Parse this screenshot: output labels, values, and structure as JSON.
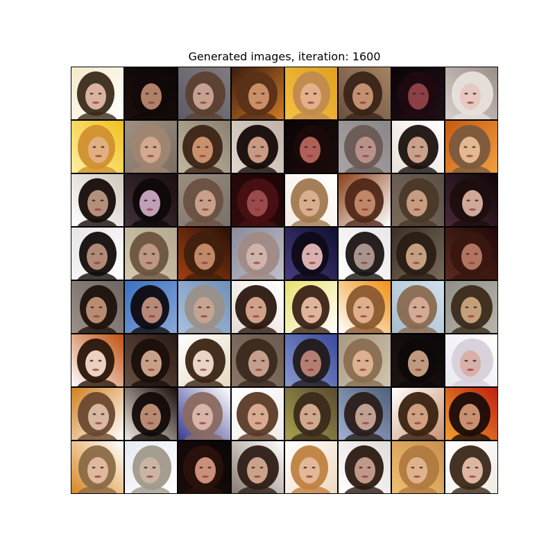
{
  "title": "Generated images, iteration: 1600",
  "grid": {
    "rows": 8,
    "cols": 8,
    "tiles": [
      {
        "bg": "#f4e9c9",
        "bg2": "#ffffff",
        "hair": "#3b2a1c",
        "skin": "#d9b3a0"
      },
      {
        "bg": "#0b0605",
        "bg2": "#1a0f0a",
        "hair": "#120a08",
        "skin": "#b08068"
      },
      {
        "bg": "#7f7b80",
        "bg2": "#5d5b66",
        "hair": "#5c4030",
        "skin": "#c5a090"
      },
      {
        "bg": "#3a1c10",
        "bg2": "#d07a25",
        "hair": "#5a3018",
        "skin": "#c99068"
      },
      {
        "bg": "#e0a020",
        "bg2": "#f5c040",
        "hair": "#c08a50",
        "skin": "#e4b08c"
      },
      {
        "bg": "#a38360",
        "bg2": "#6a5040",
        "hair": "#3a2418",
        "skin": "#c29070"
      },
      {
        "bg": "#0a0408",
        "bg2": "#201018",
        "hair": "#200a10",
        "skin": "#8a4045"
      },
      {
        "bg": "#9a8e88",
        "bg2": "#d8d0cc",
        "hair": "#e8e0dc",
        "skin": "#e6c9c0"
      },
      {
        "bg": "#f0c020",
        "bg2": "#fff0a0",
        "hair": "#d09030",
        "skin": "#e2b080"
      },
      {
        "bg": "#a09080",
        "bg2": "#7a6e66",
        "hair": "#a08670",
        "skin": "#d2a88e"
      },
      {
        "bg": "#8a8070",
        "bg2": "#c0b8a0",
        "hair": "#3c2416",
        "skin": "#c8906c"
      },
      {
        "bg": "#c0b2a8",
        "bg2": "#e0d8d0",
        "hair": "#150a08",
        "skin": "#c89a84"
      },
      {
        "bg": "#0a0406",
        "bg2": "#1a0c0c",
        "hair": "#1a0a0a",
        "skin": "#b06058"
      },
      {
        "bg": "#8a8688",
        "bg2": "#a9a4a6",
        "hair": "#6a5a54",
        "skin": "#b8928a"
      },
      {
        "bg": "#ffffff",
        "bg2": "#e8e0d8",
        "hair": "#1a120e",
        "skin": "#caa08a"
      },
      {
        "bg": "#c85a10",
        "bg2": "#f0a040",
        "hair": "#7a5a40",
        "skin": "#e4b890"
      },
      {
        "bg": "#d0c8c0",
        "bg2": "#ffffff",
        "hair": "#150c08",
        "skin": "#b4907a"
      },
      {
        "bg": "#1a0e10",
        "bg2": "#40303a",
        "hair": "#0e0808",
        "skin": "#c0a0b8"
      },
      {
        "bg": "#9a8e80",
        "bg2": "#7a7068",
        "hair": "#6a5040",
        "skin": "#c8a08a"
      },
      {
        "bg": "#1a0506",
        "bg2": "#300a0c",
        "hair": "#4a1014",
        "skin": "#9a4a4a"
      },
      {
        "bg": "#ffffff",
        "bg2": "#f4ece4",
        "hair": "#a0784e",
        "skin": "#d8ae8c"
      },
      {
        "bg": "#8a4018",
        "bg2": "#ffffff",
        "hair": "#502818",
        "skin": "#c08668"
      },
      {
        "bg": "#5a5048",
        "bg2": "#7a6a5a",
        "hair": "#4a3828",
        "skin": "#c89c80"
      },
      {
        "bg": "#0e0608",
        "bg2": "#4a2838",
        "hair": "#1c0e0e",
        "skin": "#d0a89a"
      },
      {
        "bg": "#e8e4e8",
        "bg2": "#ffffff",
        "hair": "#120c0a",
        "skin": "#b08a76"
      },
      {
        "bg": "#b4a890",
        "bg2": "#d4c8b0",
        "hair": "#6a5440",
        "skin": "#bc9880"
      },
      {
        "bg": "#2a1008",
        "bg2": "#a04010",
        "hair": "#40200e",
        "skin": "#c08868"
      },
      {
        "bg": "#8a8a9a",
        "bg2": "#c0c0cc",
        "hair": "#a08a84",
        "skin": "#d0b4ac"
      },
      {
        "bg": "#101030",
        "bg2": "#4a3a80",
        "hair": "#0e0a16",
        "skin": "#d8b0b0"
      },
      {
        "bg": "#e8e6e6",
        "bg2": "#ffffff",
        "hair": "#1a1414",
        "skin": "#a8948c"
      },
      {
        "bg": "#3a3028",
        "bg2": "#7a6a58",
        "hair": "#2a1e14",
        "skin": "#c4a080"
      },
      {
        "bg": "#200808",
        "bg2": "#5a2a20",
        "hair": "#3a1610",
        "skin": "#b07460"
      },
      {
        "bg": "#6e6660",
        "bg2": "#9a9088",
        "hair": "#1e120c",
        "skin": "#b88c72"
      },
      {
        "bg": "#3a70c0",
        "bg2": "#8aa8d8",
        "hair": "#0e0a10",
        "skin": "#b88878"
      },
      {
        "bg": "#7090b8",
        "bg2": "#a8c0dc",
        "hair": "#9a9088",
        "skin": "#c4a490"
      },
      {
        "bg": "#ffffff",
        "bg2": "#e6dcd4",
        "hair": "#2a1810",
        "skin": "#d0a088"
      },
      {
        "bg": "#e8e070",
        "bg2": "#ffffff",
        "hair": "#3a2216",
        "skin": "#e0b49a"
      },
      {
        "bg": "#f09010",
        "bg2": "#ffffff",
        "hair": "#8a5a30",
        "skin": "#e0ae8c"
      },
      {
        "bg": "#d0e0ec",
        "bg2": "#a8bccc",
        "hair": "#8a6a50",
        "skin": "#d4aa94"
      },
      {
        "bg": "#909088",
        "bg2": "#b8b4ac",
        "hair": "#3a2a1a",
        "skin": "#c4a07a"
      },
      {
        "bg": "#c05010",
        "bg2": "#ffffff",
        "hair": "#2a160c",
        "skin": "#ecd0c0"
      },
      {
        "bg": "#2a1a14",
        "bg2": "#6a5040",
        "hair": "#1a100a",
        "skin": "#c8a088"
      },
      {
        "bg": "#ffffff",
        "bg2": "#e8d8c0",
        "hair": "#3a2414",
        "skin": "#ead4c6"
      },
      {
        "bg": "#6a5a50",
        "bg2": "#8a7666",
        "hair": "#3a2a1e",
        "skin": "#c4a08c"
      },
      {
        "bg": "#3a4a9a",
        "bg2": "#8a98d0",
        "hair": "#201a1a",
        "skin": "#b47e74"
      },
      {
        "bg": "#a89880",
        "bg2": "#d0c4b0",
        "hair": "#8a6e50",
        "skin": "#dcb090"
      },
      {
        "bg": "#0a0608",
        "bg2": "#1e1412",
        "hair": "#0e0908",
        "skin": "#c09a80"
      },
      {
        "bg": "#ffffff",
        "bg2": "#e8e8f0",
        "hair": "#d8d0d8",
        "skin": "#d8b0a8"
      },
      {
        "bg": "#d08020",
        "bg2": "#ffffff",
        "hair": "#6a4830",
        "skin": "#d8b8a0"
      },
      {
        "bg": "#1a0e0a",
        "bg2": "#f0e8e0",
        "hair": "#120a08",
        "skin": "#b88a72"
      },
      {
        "bg": "#ffffff",
        "bg2": "#3a3a90",
        "hair": "#8a6a60",
        "skin": "#d8b4a8"
      },
      {
        "bg": "#ffffff",
        "bg2": "#f0ece8",
        "hair": "#5a3a26",
        "skin": "#d8aa90"
      },
      {
        "bg": "#5a4a30",
        "bg2": "#a8a050",
        "hair": "#3a2a1a",
        "skin": "#d0a88c"
      },
      {
        "bg": "#50607a",
        "bg2": "#a0b0d0",
        "hair": "#2a1e1a",
        "skin": "#c0a090"
      },
      {
        "bg": "#ffffff",
        "bg2": "#c89070",
        "hair": "#3a2210",
        "skin": "#d0a080"
      },
      {
        "bg": "#c02010",
        "bg2": "#f0a030",
        "hair": "#1a0c08",
        "skin": "#c89070"
      },
      {
        "bg": "#ffffff",
        "bg2": "#d88820",
        "hair": "#8a6a48",
        "skin": "#e0b89c"
      },
      {
        "bg": "#e6eaf0",
        "bg2": "#ffffff",
        "hair": "#a0988a",
        "skin": "#ccb4a4"
      },
      {
        "bg": "#0a0606",
        "bg2": "#1a0c0a",
        "hair": "#2a120c",
        "skin": "#c89078"
      },
      {
        "bg": "#ffffff",
        "bg2": "#8a7a70",
        "hair": "#2e1e16",
        "skin": "#caa28a"
      },
      {
        "bg": "#ffffff",
        "bg2": "#f0d8c0",
        "hair": "#c08040",
        "skin": "#e2b898"
      },
      {
        "bg": "#e0dcd8",
        "bg2": "#ffffff",
        "hair": "#2a1a12",
        "skin": "#c0988a"
      },
      {
        "bg": "#c89050",
        "bg2": "#f0c070",
        "hair": "#b07a40",
        "skin": "#e0b28c"
      },
      {
        "bg": "#ffffff",
        "bg2": "#f0ebe6",
        "hair": "#3a2818",
        "skin": "#ddb6a2"
      }
    ]
  }
}
